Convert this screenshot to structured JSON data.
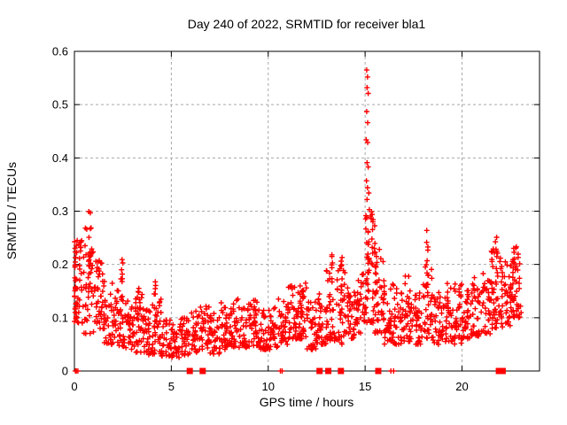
{
  "chart_data": {
    "type": "scatter",
    "title": "Day 240 of 2022, SRMTID for receiver bla1",
    "xlabel": "GPS time / hours",
    "ylabel": "SRMTID / TECUs",
    "xlim": [
      0,
      24
    ],
    "ylim": [
      0,
      0.6
    ],
    "xtick_labels": [
      "0",
      "5",
      "10",
      "15",
      "20"
    ],
    "ytick_labels": [
      "0",
      "0.1",
      "0.2",
      "0.3",
      "0.4",
      "0.5",
      "0.6"
    ],
    "grid": true,
    "legend": "none",
    "marker": "plus",
    "colors": {
      "marker": "#ff0000",
      "grid": "#a8a8a8",
      "axis": "#000000",
      "background": "#ffffff"
    },
    "seed": 7,
    "bins_comment": "dense 30s scatter approximated per half-hour: [startHour, count, minVal, maxVal]",
    "bins": [
      [
        0.0,
        42,
        0.09,
        0.25
      ],
      [
        0.5,
        40,
        0.07,
        0.27
      ],
      [
        1.0,
        40,
        0.07,
        0.21
      ],
      [
        1.5,
        38,
        0.05,
        0.17
      ],
      [
        2.0,
        36,
        0.045,
        0.16
      ],
      [
        2.5,
        34,
        0.04,
        0.135
      ],
      [
        3.0,
        34,
        0.035,
        0.15
      ],
      [
        3.5,
        34,
        0.03,
        0.12
      ],
      [
        4.0,
        34,
        0.03,
        0.135
      ],
      [
        4.5,
        32,
        0.028,
        0.1
      ],
      [
        5.0,
        32,
        0.025,
        0.095
      ],
      [
        5.5,
        32,
        0.03,
        0.1
      ],
      [
        6.0,
        32,
        0.035,
        0.115
      ],
      [
        6.5,
        34,
        0.04,
        0.13
      ],
      [
        7.0,
        32,
        0.03,
        0.11
      ],
      [
        7.5,
        34,
        0.04,
        0.13
      ],
      [
        8.0,
        36,
        0.045,
        0.145
      ],
      [
        8.5,
        34,
        0.04,
        0.125
      ],
      [
        9.0,
        34,
        0.045,
        0.135
      ],
      [
        9.5,
        32,
        0.04,
        0.115
      ],
      [
        10.0,
        34,
        0.04,
        0.12
      ],
      [
        10.5,
        34,
        0.05,
        0.135
      ],
      [
        11.0,
        36,
        0.06,
        0.16
      ],
      [
        11.5,
        38,
        0.06,
        0.18
      ],
      [
        12.0,
        34,
        0.04,
        0.13
      ],
      [
        12.5,
        34,
        0.05,
        0.145
      ],
      [
        13.0,
        36,
        0.055,
        0.19
      ],
      [
        13.5,
        36,
        0.05,
        0.2
      ],
      [
        14.0,
        36,
        0.06,
        0.165
      ],
      [
        14.5,
        36,
        0.07,
        0.19
      ],
      [
        15.0,
        42,
        0.09,
        0.3
      ],
      [
        15.5,
        40,
        0.07,
        0.24
      ],
      [
        16.0,
        36,
        0.05,
        0.17
      ],
      [
        16.5,
        34,
        0.05,
        0.155
      ],
      [
        17.0,
        36,
        0.055,
        0.18
      ],
      [
        17.5,
        34,
        0.05,
        0.165
      ],
      [
        18.0,
        36,
        0.06,
        0.2
      ],
      [
        18.5,
        34,
        0.05,
        0.155
      ],
      [
        19.0,
        36,
        0.055,
        0.165
      ],
      [
        19.5,
        36,
        0.05,
        0.17
      ],
      [
        20.0,
        36,
        0.06,
        0.16
      ],
      [
        20.5,
        36,
        0.065,
        0.185
      ],
      [
        21.0,
        36,
        0.07,
        0.185
      ],
      [
        21.5,
        38,
        0.08,
        0.23
      ],
      [
        22.0,
        38,
        0.08,
        0.21
      ],
      [
        22.5,
        38,
        0.1,
        0.24
      ]
    ],
    "clusters_comment": "narrow tall columns: [centerHour, width, count, minVal, maxVal]",
    "clusters": [
      [
        0.05,
        0.1,
        22,
        0.1,
        0.26
      ],
      [
        0.8,
        0.15,
        12,
        0.17,
        0.3
      ],
      [
        2.45,
        0.1,
        10,
        0.1,
        0.21
      ],
      [
        3.3,
        0.1,
        7,
        0.07,
        0.16
      ],
      [
        4.15,
        0.1,
        8,
        0.08,
        0.17
      ],
      [
        9.3,
        0.12,
        8,
        0.08,
        0.145
      ],
      [
        11.7,
        0.15,
        10,
        0.09,
        0.185
      ],
      [
        13.3,
        0.1,
        8,
        0.1,
        0.225
      ],
      [
        13.8,
        0.1,
        8,
        0.1,
        0.235
      ],
      [
        15.15,
        0.12,
        14,
        0.15,
        0.285
      ],
      [
        15.55,
        0.12,
        10,
        0.12,
        0.265
      ],
      [
        18.2,
        0.1,
        10,
        0.12,
        0.28
      ],
      [
        21.8,
        0.15,
        10,
        0.13,
        0.265
      ],
      [
        22.7,
        0.15,
        10,
        0.12,
        0.25
      ],
      [
        23.0,
        0.12,
        6,
        0.1,
        0.19
      ]
    ],
    "spike_points": [
      [
        15.08,
        0.565
      ],
      [
        15.12,
        0.552
      ],
      [
        15.1,
        0.532
      ],
      [
        15.16,
        0.521
      ],
      [
        15.08,
        0.487
      ],
      [
        15.13,
        0.466
      ],
      [
        15.06,
        0.434
      ],
      [
        15.13,
        0.429
      ],
      [
        15.1,
        0.391
      ],
      [
        15.16,
        0.383
      ],
      [
        15.07,
        0.357
      ],
      [
        15.12,
        0.344
      ],
      [
        15.19,
        0.334
      ],
      [
        15.1,
        0.322
      ],
      [
        15.22,
        0.303
      ],
      [
        15.28,
        0.291
      ]
    ],
    "zero_plus_hours": [
      0.05,
      0.1,
      0.18,
      10.63,
      10.72,
      16.33,
      16.47
    ],
    "zero_square_hours": [
      5.95,
      6.62,
      12.65,
      13.1,
      13.75,
      15.68,
      21.9,
      22.0,
      22.1
    ]
  }
}
